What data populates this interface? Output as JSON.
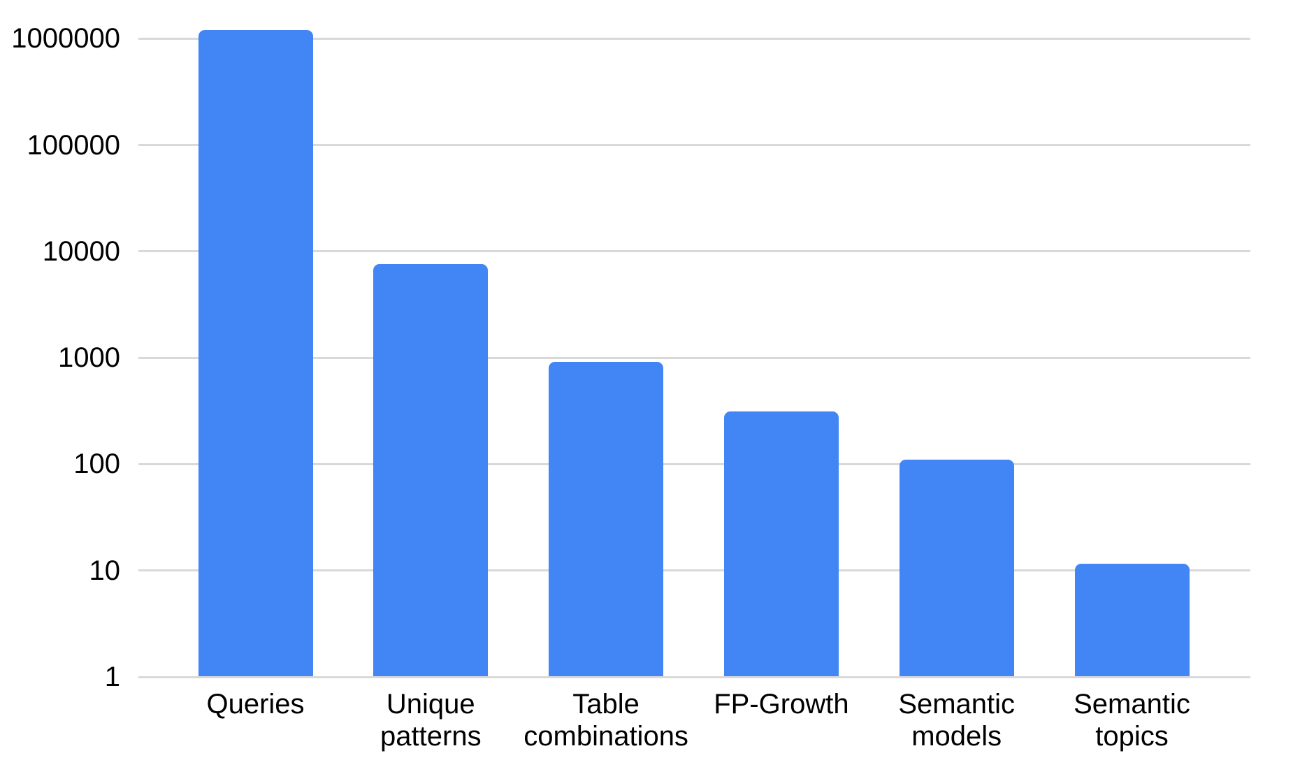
{
  "chart_data": {
    "type": "bar",
    "title": "",
    "xlabel": "",
    "ylabel": "",
    "scale": "log",
    "grid": "horizontal",
    "legend": "none",
    "categories": [
      "Queries",
      "Unique patterns",
      "Table combinations",
      "FP-Growth",
      "Semantic models",
      "Semantic topics"
    ],
    "values": [
      1200000,
      7600,
      920,
      315,
      110,
      11.5
    ],
    "y_ticks": [
      1,
      10,
      100,
      1000,
      10000,
      100000,
      1000000
    ],
    "ylim": [
      1,
      1000000
    ],
    "bar_color": "#4285F4",
    "gridline_color": "#D9D9D9",
    "label_color": "#000000",
    "background_color": "#FFFFFF"
  }
}
